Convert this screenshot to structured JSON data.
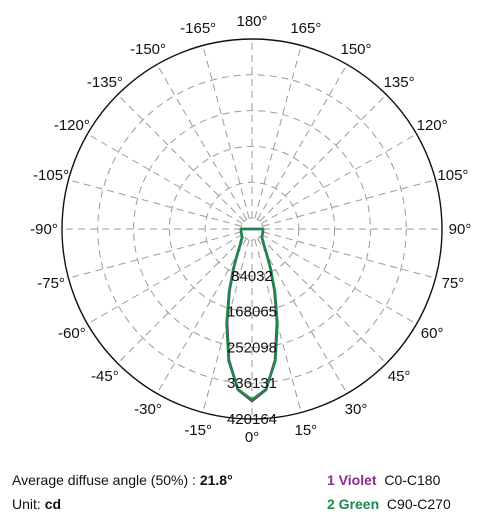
{
  "chart_data": {
    "type": "polar-line",
    "angle_labels": [
      {
        "deg": 180,
        "label": "180°"
      },
      {
        "deg": 165,
        "label": "165°"
      },
      {
        "deg": 150,
        "label": "150°"
      },
      {
        "deg": 135,
        "label": "135°"
      },
      {
        "deg": 120,
        "label": "120°"
      },
      {
        "deg": 105,
        "label": "105°"
      },
      {
        "deg": 90,
        "label": "90°"
      },
      {
        "deg": 75,
        "label": "75°"
      },
      {
        "deg": 60,
        "label": "60°"
      },
      {
        "deg": 45,
        "label": "45°"
      },
      {
        "deg": 30,
        "label": "30°"
      },
      {
        "deg": 15,
        "label": "15°"
      },
      {
        "deg": 0,
        "label": "0°"
      },
      {
        "deg": -15,
        "label": "-15°"
      },
      {
        "deg": -30,
        "label": "-30°"
      },
      {
        "deg": -45,
        "label": "-45°"
      },
      {
        "deg": -60,
        "label": "-60°"
      },
      {
        "deg": -75,
        "label": "-75°"
      },
      {
        "deg": -90,
        "label": "-90°"
      },
      {
        "deg": -105,
        "label": "-105°"
      },
      {
        "deg": -120,
        "label": "-120°"
      },
      {
        "deg": -135,
        "label": "-135°"
      },
      {
        "deg": -150,
        "label": "-150°"
      },
      {
        "deg": -165,
        "label": "-165°"
      }
    ],
    "radial_ticks": [
      84032,
      168065,
      252098,
      336131,
      420164
    ],
    "radial_tick_labels": [
      "84032",
      "168065",
      "252098",
      "336131",
      "420164"
    ],
    "r_max": 420164,
    "series": [
      {
        "name": "1 Violet",
        "color": "#8e2a8e",
        "angles": [
          0,
          5,
          10,
          15,
          20,
          25,
          30,
          40,
          50,
          60,
          70,
          80,
          90
        ],
        "values": [
          378000,
          353000,
          286000,
          200000,
          128000,
          76000,
          43000,
          14000,
          5000,
          2000,
          800,
          300,
          0
        ]
      },
      {
        "name": "2 Green",
        "color": "#1a8a4a",
        "angles": [
          0,
          5,
          10,
          15,
          20,
          25,
          30,
          40,
          50,
          60,
          70,
          80,
          90
        ],
        "values": [
          375000,
          352000,
          289000,
          205000,
          132000,
          79000,
          45000,
          15000,
          5000,
          2000,
          800,
          300,
          0
        ]
      }
    ],
    "grid": true
  },
  "footer": {
    "angle_label": "Average diffuse angle (50%) : ",
    "angle_value": "21.8°",
    "unit_label": "Unit: ",
    "unit_value": "cd",
    "legend": [
      {
        "name": "1 Violet",
        "desc": "C0-C180",
        "color": "#8e2a8e"
      },
      {
        "name": "2 Green",
        "desc": "C90-C270",
        "color": "#1a8a4a"
      }
    ]
  }
}
